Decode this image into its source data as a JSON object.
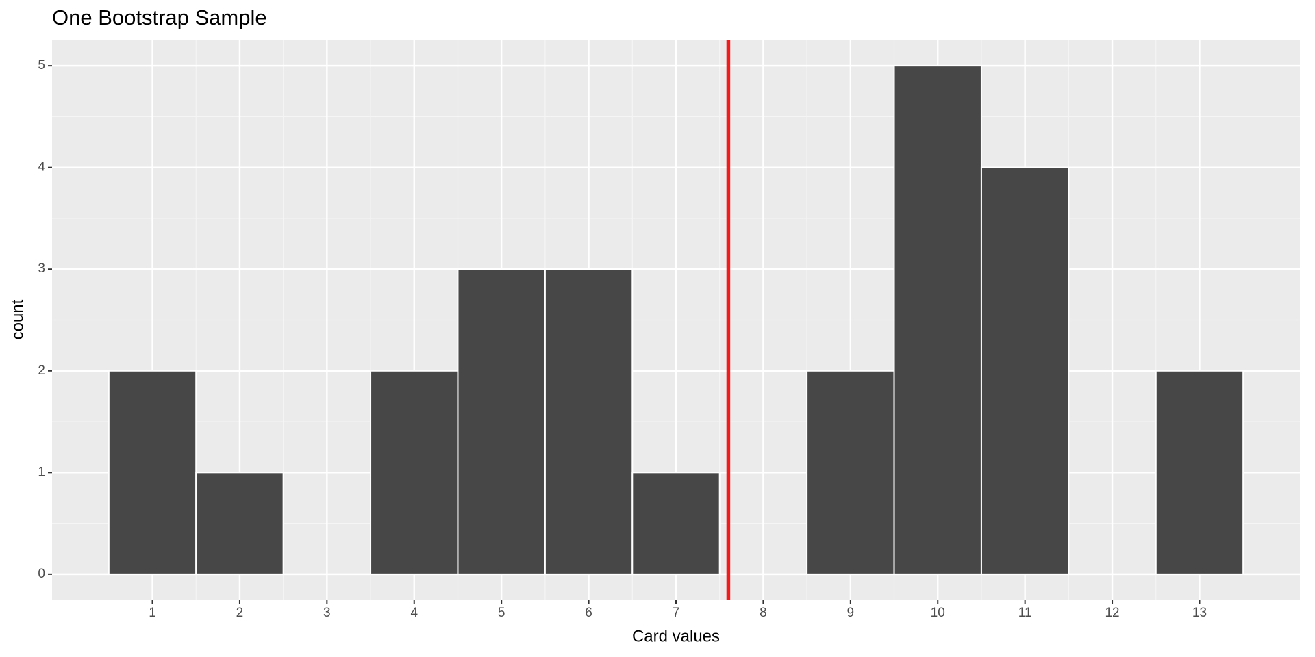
{
  "chart_data": {
    "type": "histogram",
    "title": "One Bootstrap Sample",
    "x_label": "Card values",
    "y_label": "count",
    "bins": [
      0.5,
      1.5,
      2.5,
      3.5,
      4.5,
      5.5,
      6.5,
      7.5,
      8.5,
      9.5,
      10.5,
      11.5,
      12.5,
      13.5
    ],
    "values": [
      2,
      1,
      0,
      2,
      3,
      3,
      1,
      0,
      2,
      5,
      4,
      0,
      2
    ],
    "color": "#474747",
    "xlim": [
      -0.15,
      14.15
    ],
    "ylim": [
      -0.25,
      5.25
    ],
    "xticks": [
      1,
      2,
      3,
      4,
      5,
      6,
      7,
      8,
      9,
      10,
      11,
      12,
      13
    ],
    "yticks": [
      0,
      1,
      2,
      3,
      4,
      5
    ],
    "grid": true,
    "minor_grid": true,
    "vline": 7.6,
    "vline_color": "#f31a1a"
  }
}
